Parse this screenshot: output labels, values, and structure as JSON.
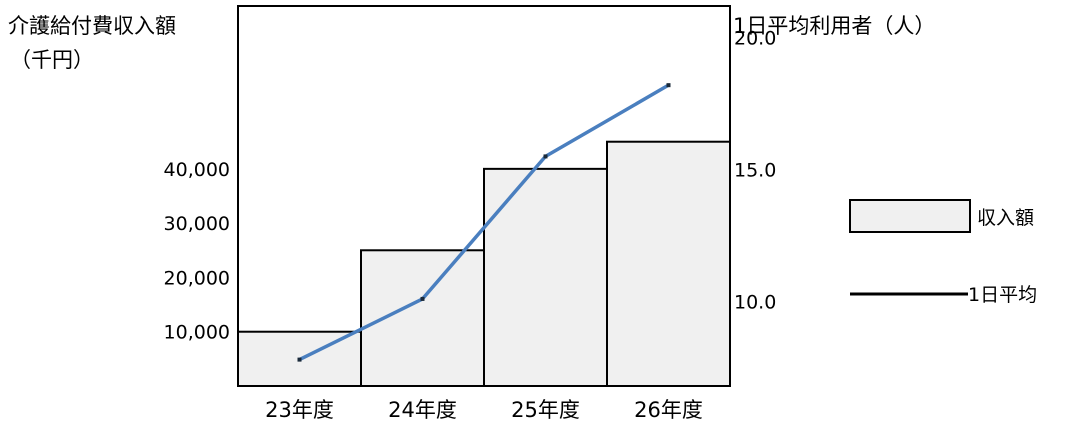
{
  "chart_data": {
    "type": "bar",
    "categories": [
      "23年度",
      "24年度",
      "25年度",
      "26年度"
    ],
    "left_axis": {
      "label_line1": "介護給付費収入額",
      "label_line2": "（千円）",
      "ticks": [
        10000,
        20000,
        30000,
        40000
      ],
      "tick_labels": [
        "10,000",
        "20,000",
        "30,000",
        "40,000"
      ],
      "ylim": [
        0,
        70000
      ]
    },
    "right_axis": {
      "label": "1日平均利用者（人）",
      "ticks": [
        10,
        15,
        20
      ],
      "tick_labels": [
        "10.0",
        "15.0",
        "20.0"
      ],
      "ylim": [
        6.8,
        21.2
      ]
    },
    "series": [
      {
        "name": "収入額",
        "kind": "bar",
        "axis": "left",
        "values": [
          10000,
          25000,
          40000,
          45000
        ],
        "color": "#f0f0f0"
      },
      {
        "name": "1日平均",
        "kind": "line",
        "axis": "right",
        "values": [
          7.8,
          10.1,
          15.5,
          18.2
        ],
        "color": "#4a7fbf"
      }
    ],
    "legend": {
      "placement": "right",
      "entries": [
        "収入額",
        "1日平均"
      ]
    },
    "grid": false
  }
}
